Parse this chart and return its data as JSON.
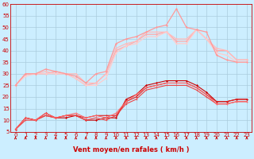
{
  "xlabel": "Vent moyen/en rafales ( km/h )",
  "xlim": [
    -0.5,
    23.5
  ],
  "ylim": [
    5,
    60
  ],
  "yticks": [
    5,
    10,
    15,
    20,
    25,
    30,
    35,
    40,
    45,
    50,
    55,
    60
  ],
  "xticks": [
    0,
    1,
    2,
    3,
    4,
    5,
    6,
    7,
    8,
    9,
    10,
    11,
    12,
    13,
    14,
    15,
    16,
    17,
    18,
    19,
    20,
    21,
    22,
    23
  ],
  "bg_color": "#cceeff",
  "grid_color": "#aaccdd",
  "red_color": "#dd0000",
  "series": [
    {
      "x": [
        0,
        1,
        2,
        3,
        4,
        5,
        6,
        7,
        8,
        9,
        10,
        11,
        12,
        13,
        14,
        15,
        16,
        17,
        18,
        19,
        20,
        21,
        22,
        23
      ],
      "y": [
        6,
        11,
        10,
        13,
        11,
        11,
        12,
        10,
        10,
        11,
        11,
        19,
        21,
        25,
        26,
        27,
        27,
        27,
        25,
        22,
        18,
        18,
        19,
        19
      ],
      "color": "#cc0000",
      "lw": 0.8,
      "marker": "D",
      "ms": 1.5
    },
    {
      "x": [
        0,
        1,
        2,
        3,
        4,
        5,
        6,
        7,
        8,
        9,
        10,
        11,
        12,
        13,
        14,
        15,
        16,
        17,
        18,
        19,
        20,
        21,
        22,
        23
      ],
      "y": [
        6,
        11,
        10,
        12,
        11,
        12,
        12,
        11,
        12,
        12,
        12,
        18,
        20,
        24,
        25,
        26,
        26,
        26,
        24,
        21,
        18,
        18,
        19,
        19
      ],
      "color": "#dd2222",
      "lw": 0.8,
      "marker": "D",
      "ms": 1.2
    },
    {
      "x": [
        0,
        1,
        2,
        3,
        4,
        5,
        6,
        7,
        8,
        9,
        10,
        11,
        12,
        13,
        14,
        15,
        16,
        17,
        18,
        19,
        20,
        21,
        22,
        23
      ],
      "y": [
        6,
        10,
        10,
        12,
        11,
        12,
        12,
        10,
        11,
        10,
        12,
        17,
        19,
        23,
        24,
        25,
        25,
        25,
        23,
        20,
        17,
        17,
        18,
        18
      ],
      "color": "#ee4444",
      "lw": 0.8,
      "marker": "D",
      "ms": 1.0
    },
    {
      "x": [
        0,
        1,
        2,
        3,
        4,
        5,
        6,
        7,
        8,
        9,
        10,
        11,
        12,
        13,
        14,
        15,
        16,
        17,
        18,
        19,
        20,
        21,
        22,
        23
      ],
      "y": [
        6,
        11,
        10,
        13,
        11,
        12,
        13,
        11,
        12,
        11,
        13,
        18,
        21,
        24,
        25,
        26,
        26,
        26,
        24,
        21,
        17,
        17,
        18,
        18
      ],
      "color": "#ff6666",
      "lw": 0.8,
      "marker": "D",
      "ms": 1.0
    },
    {
      "x": [
        0,
        1,
        2,
        3,
        4,
        5,
        6,
        7,
        8,
        9,
        10,
        11,
        12,
        13,
        14,
        15,
        16,
        17,
        18,
        19,
        20,
        21,
        22,
        23
      ],
      "y": [
        25,
        30,
        30,
        30,
        31,
        30,
        28,
        25,
        26,
        30,
        40,
        42,
        44,
        47,
        47,
        48,
        44,
        44,
        49,
        45,
        40,
        40,
        36,
        36
      ],
      "color": "#ffaaaa",
      "lw": 0.9,
      "marker": "D",
      "ms": 1.5
    },
    {
      "x": [
        0,
        1,
        2,
        3,
        4,
        5,
        6,
        7,
        8,
        9,
        10,
        11,
        12,
        13,
        14,
        15,
        16,
        17,
        18,
        19,
        20,
        21,
        22,
        23
      ],
      "y": [
        25,
        30,
        30,
        31,
        30,
        30,
        30,
        26,
        26,
        30,
        41,
        43,
        44,
        48,
        48,
        48,
        45,
        45,
        49,
        45,
        41,
        40,
        36,
        36
      ],
      "color": "#ffbbbb",
      "lw": 0.9,
      "marker": "D",
      "ms": 1.5
    },
    {
      "x": [
        0,
        1,
        2,
        3,
        4,
        5,
        6,
        7,
        8,
        9,
        10,
        11,
        12,
        13,
        14,
        15,
        16,
        17,
        18,
        19,
        20,
        21,
        22,
        23
      ],
      "y": [
        25,
        29,
        30,
        30,
        30,
        30,
        28,
        25,
        25,
        28,
        39,
        42,
        43,
        46,
        46,
        48,
        43,
        43,
        49,
        45,
        39,
        38,
        35,
        35
      ],
      "color": "#ffcccc",
      "lw": 0.9,
      "marker": "D",
      "ms": 1.2
    },
    {
      "x": [
        0,
        1,
        2,
        3,
        4,
        5,
        6,
        7,
        8,
        9,
        10,
        11,
        12,
        13,
        14,
        15,
        16,
        17,
        18,
        19,
        20,
        21,
        22,
        23
      ],
      "y": [
        25,
        30,
        30,
        32,
        31,
        30,
        29,
        26,
        30,
        31,
        43,
        45,
        46,
        48,
        50,
        51,
        58,
        50,
        49,
        48,
        38,
        36,
        35,
        35
      ],
      "color": "#ff9999",
      "lw": 0.9,
      "marker": "D",
      "ms": 1.5
    }
  ],
  "arrow_color": "#cc0000",
  "label_color": "#cc0000",
  "tick_fontsize": 5,
  "xlabel_fontsize": 6
}
